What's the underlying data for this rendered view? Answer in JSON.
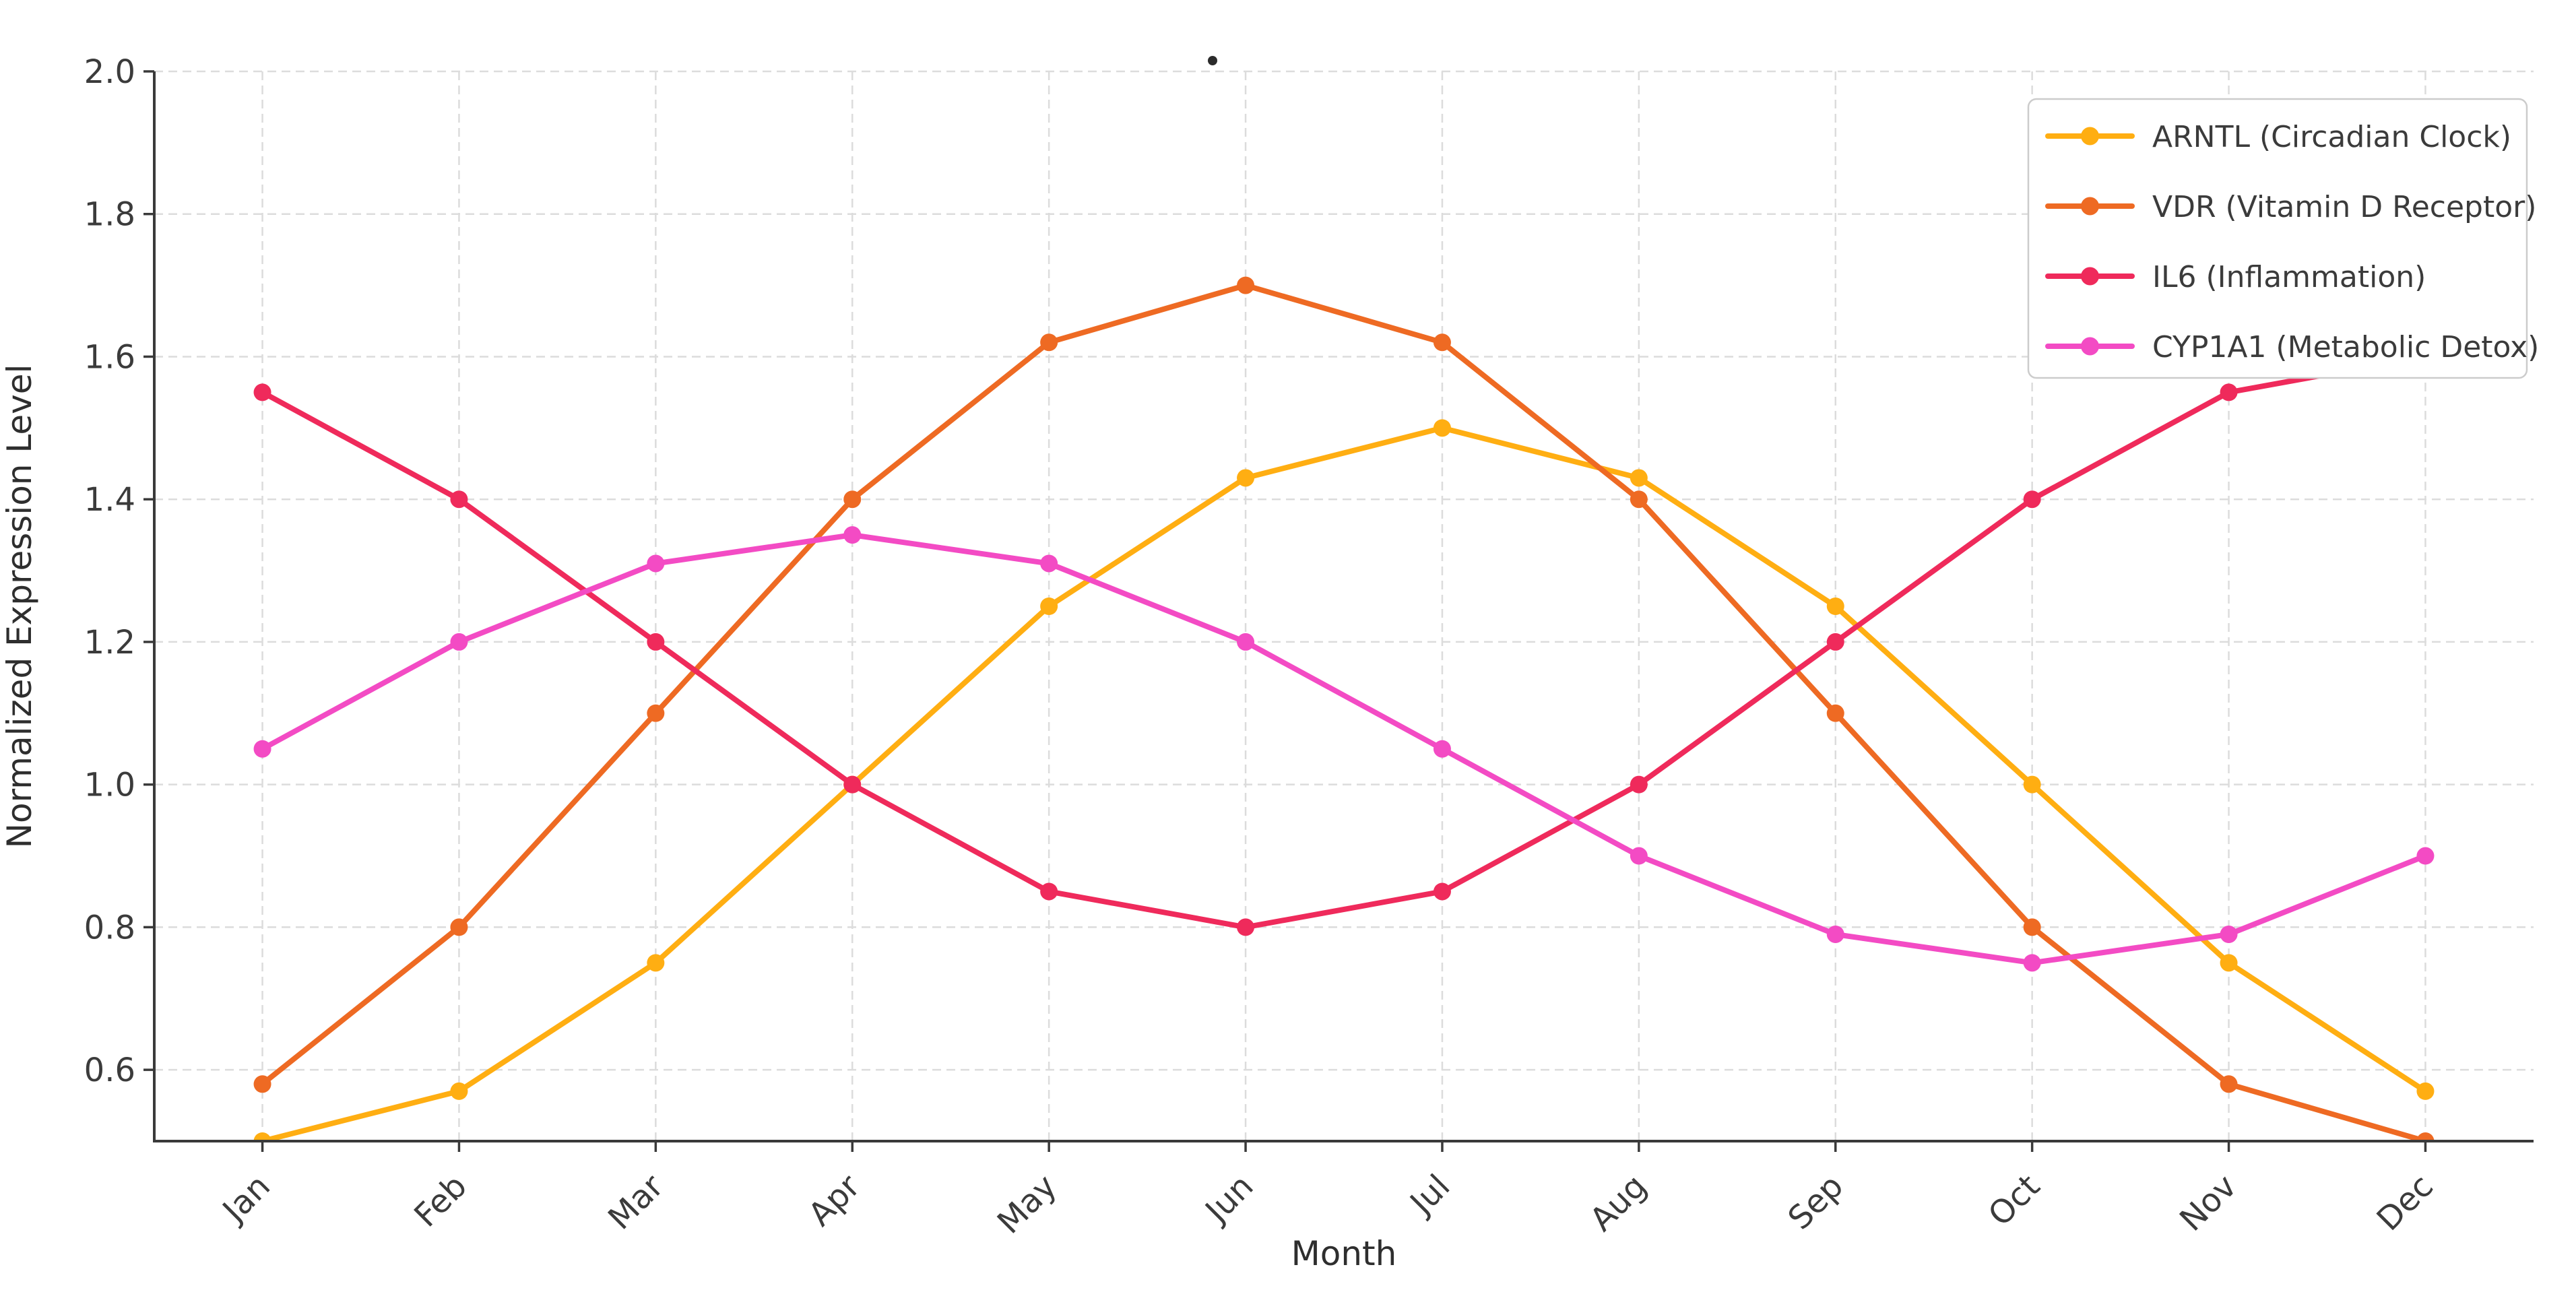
{
  "colors": {
    "background": "#ffffff",
    "grid": "#dcdcdc",
    "spine": "#3a3a3a",
    "tick_label": "#3b3b3b",
    "axis_label": "#2e2e2e",
    "legend_border": "#cccccc",
    "legend_bg": "#ffffff",
    "title_dot": "#2b2b2b"
  },
  "chart_data": {
    "type": "line",
    "title": ".",
    "xlabel": "Month",
    "ylabel": "Normalized Expression Level",
    "categories": [
      "Jan",
      "Feb",
      "Mar",
      "Apr",
      "May",
      "Jun",
      "Jul",
      "Aug",
      "Sep",
      "Oct",
      "Nov",
      "Dec"
    ],
    "ylim": [
      0.5,
      2.0
    ],
    "ytick_labels": [
      "0.6",
      "0.8",
      "1.0",
      "1.2",
      "1.4",
      "1.6",
      "1.8",
      "2.0"
    ],
    "x_margin": 0.55,
    "grid": "dashed both axes",
    "legend_position": "upper right",
    "marker": "circle",
    "series": [
      {
        "name": "ARNTL (Circadian Clock)",
        "color": "#ffae12",
        "values": [
          0.5,
          0.57,
          0.75,
          1.0,
          1.25,
          1.43,
          1.5,
          1.43,
          1.25,
          1.0,
          0.75,
          0.57
        ]
      },
      {
        "name": "VDR (Vitamin D Receptor)",
        "color": "#ee6a23",
        "values": [
          0.58,
          0.8,
          1.1,
          1.4,
          1.62,
          1.7,
          1.62,
          1.4,
          1.1,
          0.8,
          0.58,
          0.5
        ]
      },
      {
        "name": "IL6 (Inflammation)",
        "color": "#ef2a5b",
        "values": [
          1.55,
          1.4,
          1.2,
          1.0,
          0.85,
          0.8,
          0.85,
          1.0,
          1.2,
          1.4,
          1.55,
          1.6
        ]
      },
      {
        "name": "CYP1A1 (Metabolic Detox)",
        "color": "#f34bc4",
        "values": [
          1.05,
          1.2,
          1.31,
          1.35,
          1.31,
          1.2,
          1.05,
          0.9,
          0.79,
          0.75,
          0.79,
          0.9
        ]
      }
    ]
  }
}
